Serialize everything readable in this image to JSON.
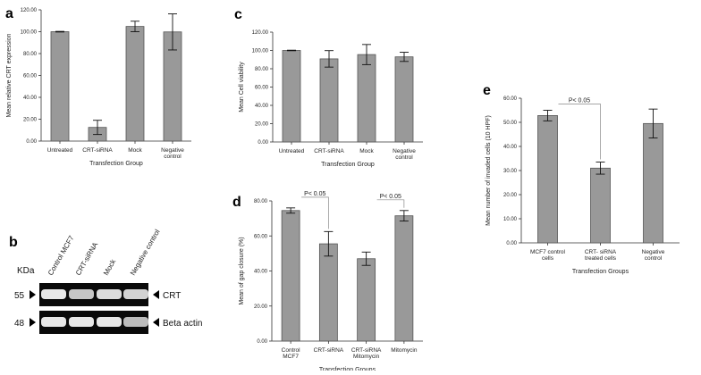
{
  "chart_data": [
    {
      "id": "a",
      "type": "bar",
      "panel_label": "a",
      "categories": [
        "Untreated",
        "CRT-siRNA",
        "Mock",
        "Negative control"
      ],
      "values": [
        100.0,
        12.5,
        104.8,
        99.8
      ],
      "errors": [
        0.3,
        6.5,
        4.8,
        16.5
      ],
      "ylabel": "Mean relative CRT expression",
      "xlabel": "Transfection Group",
      "ylim": [
        0,
        120
      ],
      "ticks": [
        "0.00",
        "20.00",
        "40.00",
        "60.00",
        "80.00",
        "100.00",
        "120.00"
      ]
    },
    {
      "id": "c",
      "type": "bar",
      "panel_label": "c",
      "categories": [
        "Untreated",
        "CRT-siRNA",
        "Mock",
        "Negative control"
      ],
      "values": [
        100.0,
        90.8,
        95.5,
        93.0
      ],
      "errors": [
        0.3,
        9.0,
        11.0,
        5.0
      ],
      "ylabel": "Mean Cell viability",
      "xlabel": "Transfection Group",
      "ylim": [
        0,
        120
      ],
      "ticks": [
        "0.00",
        "20.00",
        "40.00",
        "60.00",
        "80.00",
        "100.00",
        "120.00"
      ]
    },
    {
      "id": "d",
      "type": "bar",
      "panel_label": "d",
      "categories": [
        "Control MCF7",
        "CRT-siRNA",
        "CRT-siRNA Mitomycin",
        "Mitomycin"
      ],
      "values": [
        74.5,
        55.5,
        47.0,
        71.5
      ],
      "errors": [
        1.5,
        7.0,
        3.8,
        3.0
      ],
      "ylabel": "Mean of gap closure (%)",
      "xlabel": "Transfection Groups",
      "ylim": [
        0,
        80
      ],
      "ticks": [
        "0.00",
        "20.00",
        "40.00",
        "60.00",
        "80.00"
      ],
      "annotations": [
        {
          "text": "P< 0.05",
          "from": 0,
          "to": 1
        },
        {
          "text": "P< 0.05",
          "from": 2,
          "to": 3
        }
      ]
    },
    {
      "id": "e",
      "type": "bar",
      "panel_label": "e",
      "categories": [
        "MCF7 control cells",
        "CRT- siRNA treated cells",
        "Negative control"
      ],
      "values": [
        52.8,
        31.0,
        49.5
      ],
      "errors": [
        2.2,
        2.5,
        6.0
      ],
      "ylabel": "Mean number of invaded cells (10 HPF)",
      "xlabel": "Transfection Groups",
      "ylim": [
        0,
        60
      ],
      "ticks": [
        "0.00",
        "10.00",
        "20.00",
        "30.00",
        "40.00",
        "50.00",
        "60.00"
      ],
      "annotations": [
        {
          "text": "P< 0.05",
          "from": 0,
          "to": 1
        }
      ]
    }
  ],
  "blot": {
    "panel_label": "b",
    "lane_labels": [
      "Control MCF7",
      "CRT-siRNA",
      "Mock",
      "Negative control"
    ],
    "kda_label": "KDa",
    "rows": [
      {
        "marker": "55",
        "label": "CRT",
        "intensity": [
          1.0,
          0.85,
          0.95,
          0.9
        ]
      },
      {
        "marker": "48",
        "label": "Beta actin",
        "intensity": [
          1.0,
          1.0,
          1.0,
          0.8
        ]
      }
    ]
  },
  "colors": {
    "bar": "#999999",
    "bar_stroke": "#555555",
    "blot_bg": "#0a0a0a",
    "band": "#e8e8e8"
  }
}
